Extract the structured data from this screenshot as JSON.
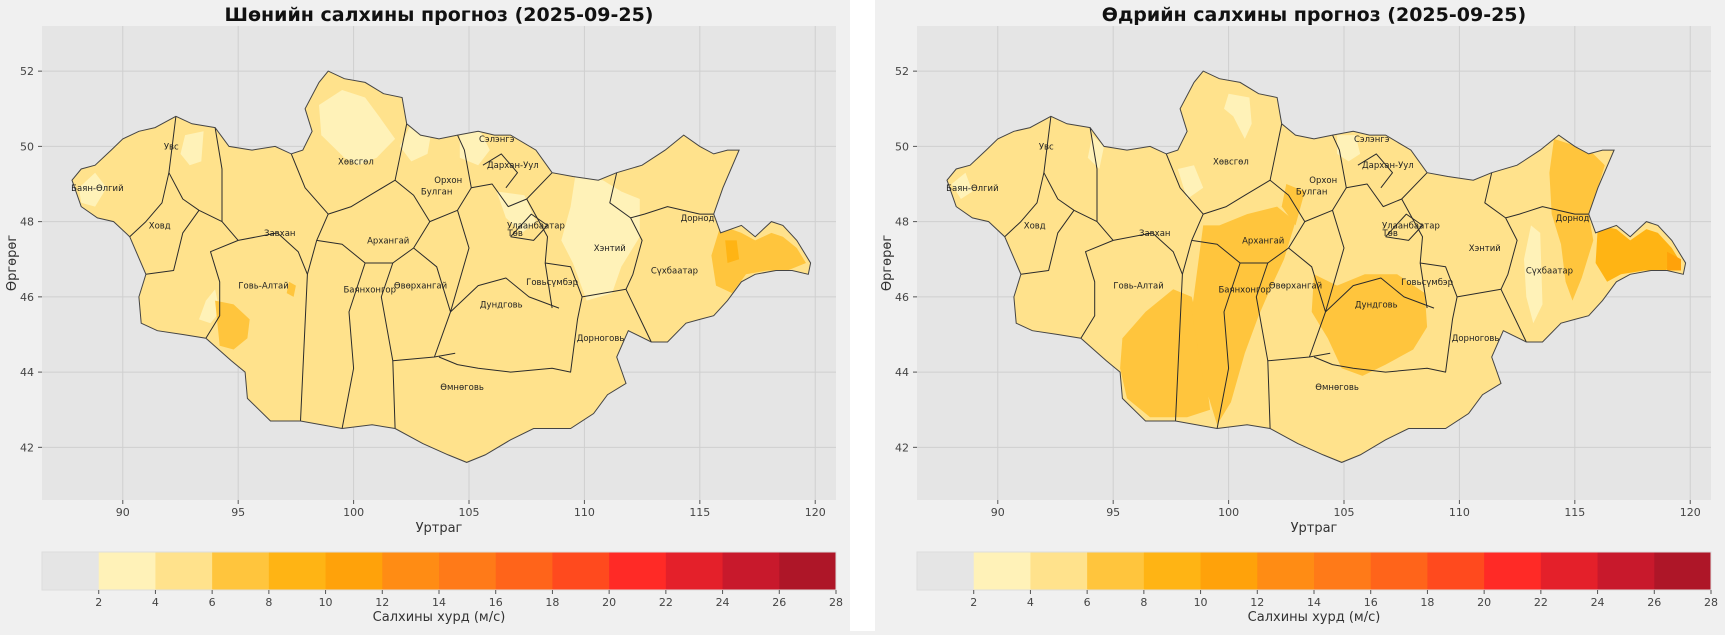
{
  "colors": {
    "figure_bg": "#f0f0f0",
    "plot_bg": "#e5e5e5",
    "grid": "#cfcfcf",
    "border": "#333333",
    "bins": [
      "#e5e5e5",
      "#fff2b8",
      "#ffe28c",
      "#ffc53d",
      "#ffb414",
      "#ffa20a",
      "#ff8c14",
      "#ff7a18",
      "#ff641a",
      "#ff4a1e",
      "#ff2a26",
      "#e4202a",
      "#c8192c",
      "#ae1628"
    ]
  },
  "charts": [
    {
      "id": "night",
      "title": "Шөнийн салхины прогноз (2025-09-25)",
      "xlabel": "Уртраг",
      "ylabel": "Өргөрөг",
      "colorbar_label": "Салхины хурд (м/с)"
    },
    {
      "id": "day",
      "title": "Өдрийн салхины прогноз (2025-09-25)",
      "xlabel": "Уртраг",
      "ylabel": "Өргөрөг",
      "colorbar_label": "Салхины хурд (м/с)"
    }
  ],
  "chart_data": [
    {
      "type": "heatmap",
      "title": "Шөнийн салхины прогноз (2025-09-25)",
      "xlabel": "Уртраг",
      "ylabel": "Өргөрөг",
      "xlim": [
        86.5,
        120.9
      ],
      "ylim": [
        40.6,
        53.2
      ],
      "xticks": [
        90,
        95,
        100,
        105,
        110,
        115,
        120
      ],
      "yticks": [
        42,
        44,
        46,
        48,
        50,
        52
      ],
      "grid": true,
      "colorbar": {
        "label": "Салхины хурд (м/с)",
        "bins": [
          0,
          2,
          4,
          6,
          8,
          10,
          12,
          14,
          16,
          18,
          20,
          22,
          24,
          26,
          28
        ],
        "tick_labels": [
          "2",
          "4",
          "6",
          "8",
          "10",
          "12",
          "14",
          "16",
          "18",
          "20",
          "22",
          "24",
          "26",
          "28"
        ]
      },
      "regions": [
        {
          "name": "Баян-Өлгий",
          "lon": 88.9,
          "lat": 48.9,
          "value": 5
        },
        {
          "name": "Увс",
          "lon": 92.1,
          "lat": 50.0,
          "value": 5
        },
        {
          "name": "Ховд",
          "lon": 91.6,
          "lat": 47.9,
          "value": 5
        },
        {
          "name": "Завхан",
          "lon": 96.8,
          "lat": 47.7,
          "value": 5
        },
        {
          "name": "Говь-Алтай",
          "lon": 96.1,
          "lat": 46.3,
          "value": 5
        },
        {
          "name": "Хөвсгөл",
          "lon": 100.1,
          "lat": 49.6,
          "value": 4
        },
        {
          "name": "Архангай",
          "lon": 101.5,
          "lat": 47.5,
          "value": 5
        },
        {
          "name": "Баянхонгор",
          "lon": 100.7,
          "lat": 46.2,
          "value": 5
        },
        {
          "name": "Өвөрхангай",
          "lon": 102.9,
          "lat": 46.3,
          "value": 5
        },
        {
          "name": "Булган",
          "lon": 103.6,
          "lat": 48.8,
          "value": 5
        },
        {
          "name": "Орхон",
          "lon": 104.1,
          "lat": 49.1,
          "value": 5
        },
        {
          "name": "Сэлэнгэ",
          "lon": 106.2,
          "lat": 50.2,
          "value": 5
        },
        {
          "name": "Дархан-Уул",
          "lon": 106.9,
          "lat": 49.5,
          "value": 5
        },
        {
          "name": "Улаанбаатар",
          "lon": 107.9,
          "lat": 47.9,
          "value": 5
        },
        {
          "name": "Төв",
          "lon": 107.0,
          "lat": 47.7,
          "value": 5
        },
        {
          "name": "Хэнтий",
          "lon": 111.1,
          "lat": 47.3,
          "value": 4
        },
        {
          "name": "Дундговь",
          "lon": 106.4,
          "lat": 45.8,
          "value": 5
        },
        {
          "name": "Говьсүмбэр",
          "lon": 108.6,
          "lat": 46.4,
          "value": 5
        },
        {
          "name": "Дорнод",
          "lon": 114.9,
          "lat": 48.1,
          "value": 5
        },
        {
          "name": "Сүхбаатар",
          "lon": 113.9,
          "lat": 46.7,
          "value": 5
        },
        {
          "name": "Дорноговь",
          "lon": 110.7,
          "lat": 44.9,
          "value": 5
        },
        {
          "name": "Өмнөговь",
          "lon": 104.7,
          "lat": 43.6,
          "value": 5
        }
      ]
    },
    {
      "type": "heatmap",
      "title": "Өдрийн салхины прогноз (2025-09-25)",
      "xlabel": "Уртраг",
      "ylabel": "Өргөрөг",
      "xlim": [
        86.5,
        120.9
      ],
      "ylim": [
        40.6,
        53.2
      ],
      "xticks": [
        90,
        95,
        100,
        105,
        110,
        115,
        120
      ],
      "yticks": [
        42,
        44,
        46,
        48,
        50,
        52
      ],
      "grid": true,
      "colorbar": {
        "label": "Салхины хурд (м/с)",
        "bins": [
          0,
          2,
          4,
          6,
          8,
          10,
          12,
          14,
          16,
          18,
          20,
          22,
          24,
          26,
          28
        ],
        "tick_labels": [
          "2",
          "4",
          "6",
          "8",
          "10",
          "12",
          "14",
          "16",
          "18",
          "20",
          "22",
          "24",
          "26",
          "28"
        ]
      },
      "regions": [
        {
          "name": "Баян-Өлгий",
          "lon": 88.9,
          "lat": 48.9,
          "value": 5
        },
        {
          "name": "Увс",
          "lon": 92.1,
          "lat": 50.0,
          "value": 5
        },
        {
          "name": "Ховд",
          "lon": 91.6,
          "lat": 47.9,
          "value": 5
        },
        {
          "name": "Завхан",
          "lon": 96.8,
          "lat": 47.7,
          "value": 5
        },
        {
          "name": "Говь-Алтай",
          "lon": 96.1,
          "lat": 46.3,
          "value": 5
        },
        {
          "name": "Хөвсгөл",
          "lon": 100.1,
          "lat": 49.6,
          "value": 5
        },
        {
          "name": "Архангай",
          "lon": 101.5,
          "lat": 47.5,
          "value": 7
        },
        {
          "name": "Баянхонгор",
          "lon": 100.7,
          "lat": 46.2,
          "value": 7
        },
        {
          "name": "Өвөрхангай",
          "lon": 102.9,
          "lat": 46.3,
          "value": 5
        },
        {
          "name": "Булган",
          "lon": 103.6,
          "lat": 48.8,
          "value": 5
        },
        {
          "name": "Орхон",
          "lon": 104.1,
          "lat": 49.1,
          "value": 5
        },
        {
          "name": "Сэлэнгэ",
          "lon": 106.2,
          "lat": 50.2,
          "value": 5
        },
        {
          "name": "Дархан-Уул",
          "lon": 106.9,
          "lat": 49.5,
          "value": 5
        },
        {
          "name": "Улаанбаатар",
          "lon": 107.9,
          "lat": 47.9,
          "value": 5
        },
        {
          "name": "Төв",
          "lon": 107.0,
          "lat": 47.7,
          "value": 5
        },
        {
          "name": "Хэнтий",
          "lon": 111.1,
          "lat": 47.3,
          "value": 5
        },
        {
          "name": "Дундговь",
          "lon": 106.4,
          "lat": 45.8,
          "value": 7
        },
        {
          "name": "Говьсүмбэр",
          "lon": 108.6,
          "lat": 46.4,
          "value": 5
        },
        {
          "name": "Дорнод",
          "lon": 114.9,
          "lat": 48.1,
          "value": 7
        },
        {
          "name": "Сүхбаатар",
          "lon": 113.9,
          "lat": 46.7,
          "value": 5
        },
        {
          "name": "Дорноговь",
          "lon": 110.7,
          "lat": 44.9,
          "value": 5
        },
        {
          "name": "Өмнөговь",
          "lon": 104.7,
          "lat": 43.6,
          "value": 6
        }
      ]
    }
  ]
}
